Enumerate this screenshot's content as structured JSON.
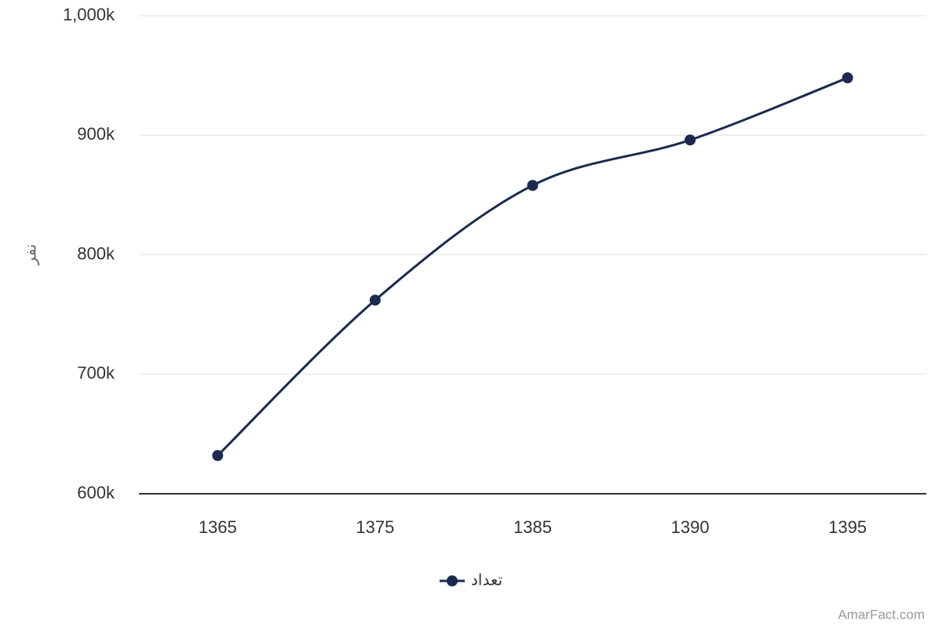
{
  "chart_data": {
    "type": "line",
    "y_label": "نفر",
    "categories": [
      "1365",
      "1375",
      "1385",
      "1390",
      "1395"
    ],
    "series": [
      {
        "name": "تعداد",
        "color": "#1b2a4e",
        "values": [
          632000,
          762000,
          858000,
          896000,
          948000
        ]
      }
    ],
    "ylim": [
      600000,
      1000000
    ],
    "yticks": [
      {
        "value": 600000,
        "label": "600k"
      },
      {
        "value": 700000,
        "label": "700k"
      },
      {
        "value": 800000,
        "label": "800k"
      },
      {
        "value": 900000,
        "label": "900k"
      },
      {
        "value": 1000000,
        "label": "1,000k"
      }
    ],
    "grid": true,
    "legend": "bottom",
    "credits": "AmarFact.com"
  }
}
